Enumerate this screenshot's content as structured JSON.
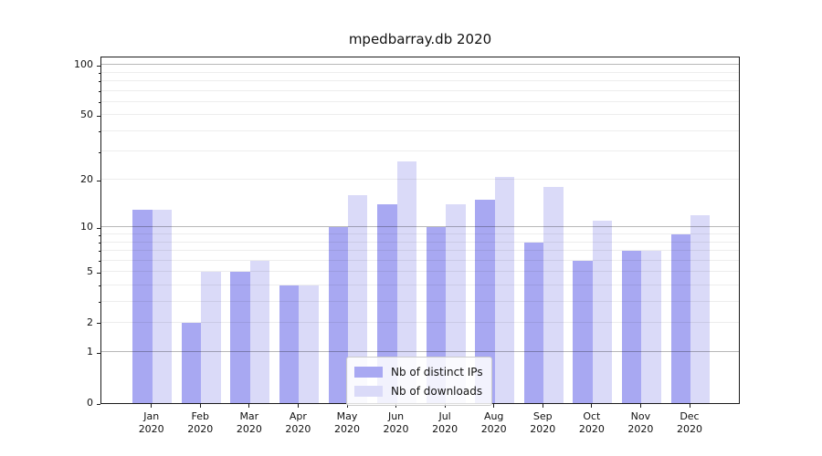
{
  "chart_data": {
    "type": "bar",
    "title": "mpedbarray.db 2020",
    "year": "2020",
    "categories": [
      "Jan",
      "Feb",
      "Mar",
      "Apr",
      "May",
      "Jun",
      "Jul",
      "Aug",
      "Sep",
      "Oct",
      "Nov",
      "Dec"
    ],
    "series": [
      {
        "name": "Nb of distinct IPs",
        "color": "#a8a8f2",
        "values": [
          13,
          2,
          5,
          4,
          10,
          14,
          10,
          15,
          8,
          6,
          7,
          9
        ]
      },
      {
        "name": "Nb of downloads",
        "color": "#dadaf8",
        "values": [
          13,
          5,
          6,
          4,
          16,
          26,
          14,
          21,
          18,
          11,
          7,
          12
        ]
      }
    ],
    "yscale": "log1p",
    "ylim": [
      0,
      112
    ],
    "yticks": [
      0,
      1,
      2,
      5,
      10,
      20,
      50,
      100
    ],
    "major_gridlines": [
      1,
      10,
      100
    ],
    "minor_gridlines": [
      2,
      3,
      4,
      5,
      6,
      7,
      8,
      9,
      20,
      30,
      40,
      50,
      60,
      70,
      80,
      90
    ],
    "grid": true,
    "legend_position": "lower center",
    "xlabel": "",
    "ylabel": ""
  }
}
